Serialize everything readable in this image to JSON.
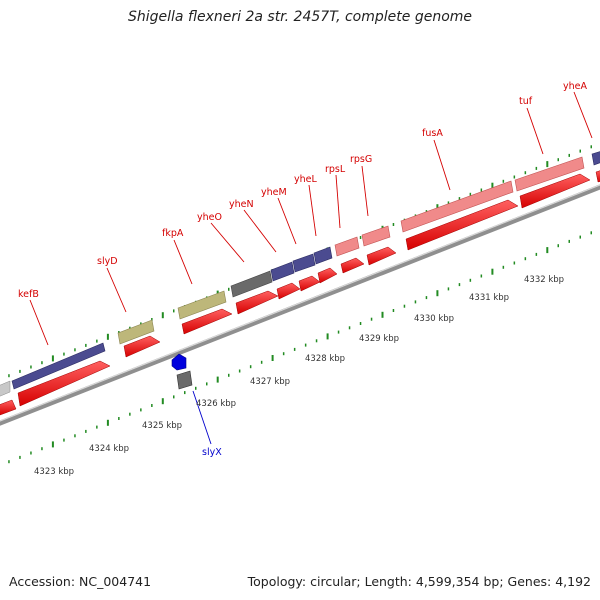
{
  "title": "Shigella flexneri 2a str. 2457T, complete genome",
  "footer": {
    "accession": "Accession: NC_004741",
    "summary": "Topology: circular; Length: 4,599,354 bp; Genes: 4,192"
  },
  "map": {
    "gene_labels": [
      {
        "id": "kefB",
        "text": "kefB"
      },
      {
        "id": "slyD",
        "text": "slyD"
      },
      {
        "id": "fkpA",
        "text": "fkpA"
      },
      {
        "id": "yheO",
        "text": "yheO"
      },
      {
        "id": "yheN",
        "text": "yheN"
      },
      {
        "id": "yheM",
        "text": "yheM"
      },
      {
        "id": "yheL",
        "text": "yheL"
      },
      {
        "id": "rpsL",
        "text": "rpsL"
      },
      {
        "id": "rpsG",
        "text": "rpsG"
      },
      {
        "id": "fusA",
        "text": "fusA"
      },
      {
        "id": "tuf",
        "text": "tuf"
      },
      {
        "id": "yheA",
        "text": "yheA"
      },
      {
        "id": "slyX",
        "text": "slyX"
      }
    ],
    "kbp_labels": [
      "4323 kbp",
      "4324 kbp",
      "4325 kbp",
      "4326 kbp",
      "4327 kbp",
      "4328 kbp",
      "4329 kbp",
      "4330 kbp",
      "4331 kbp",
      "4332 kbp"
    ],
    "colors": {
      "backbone": "#9a9a9a",
      "cds": "#ee0000",
      "rna": "#f08a8a",
      "hypothetical": "#4b4b90",
      "olive": "#bdb77a",
      "gray": "#6a6a6a",
      "blue_feature": "#0000dd",
      "tick": "#228b22"
    }
  }
}
